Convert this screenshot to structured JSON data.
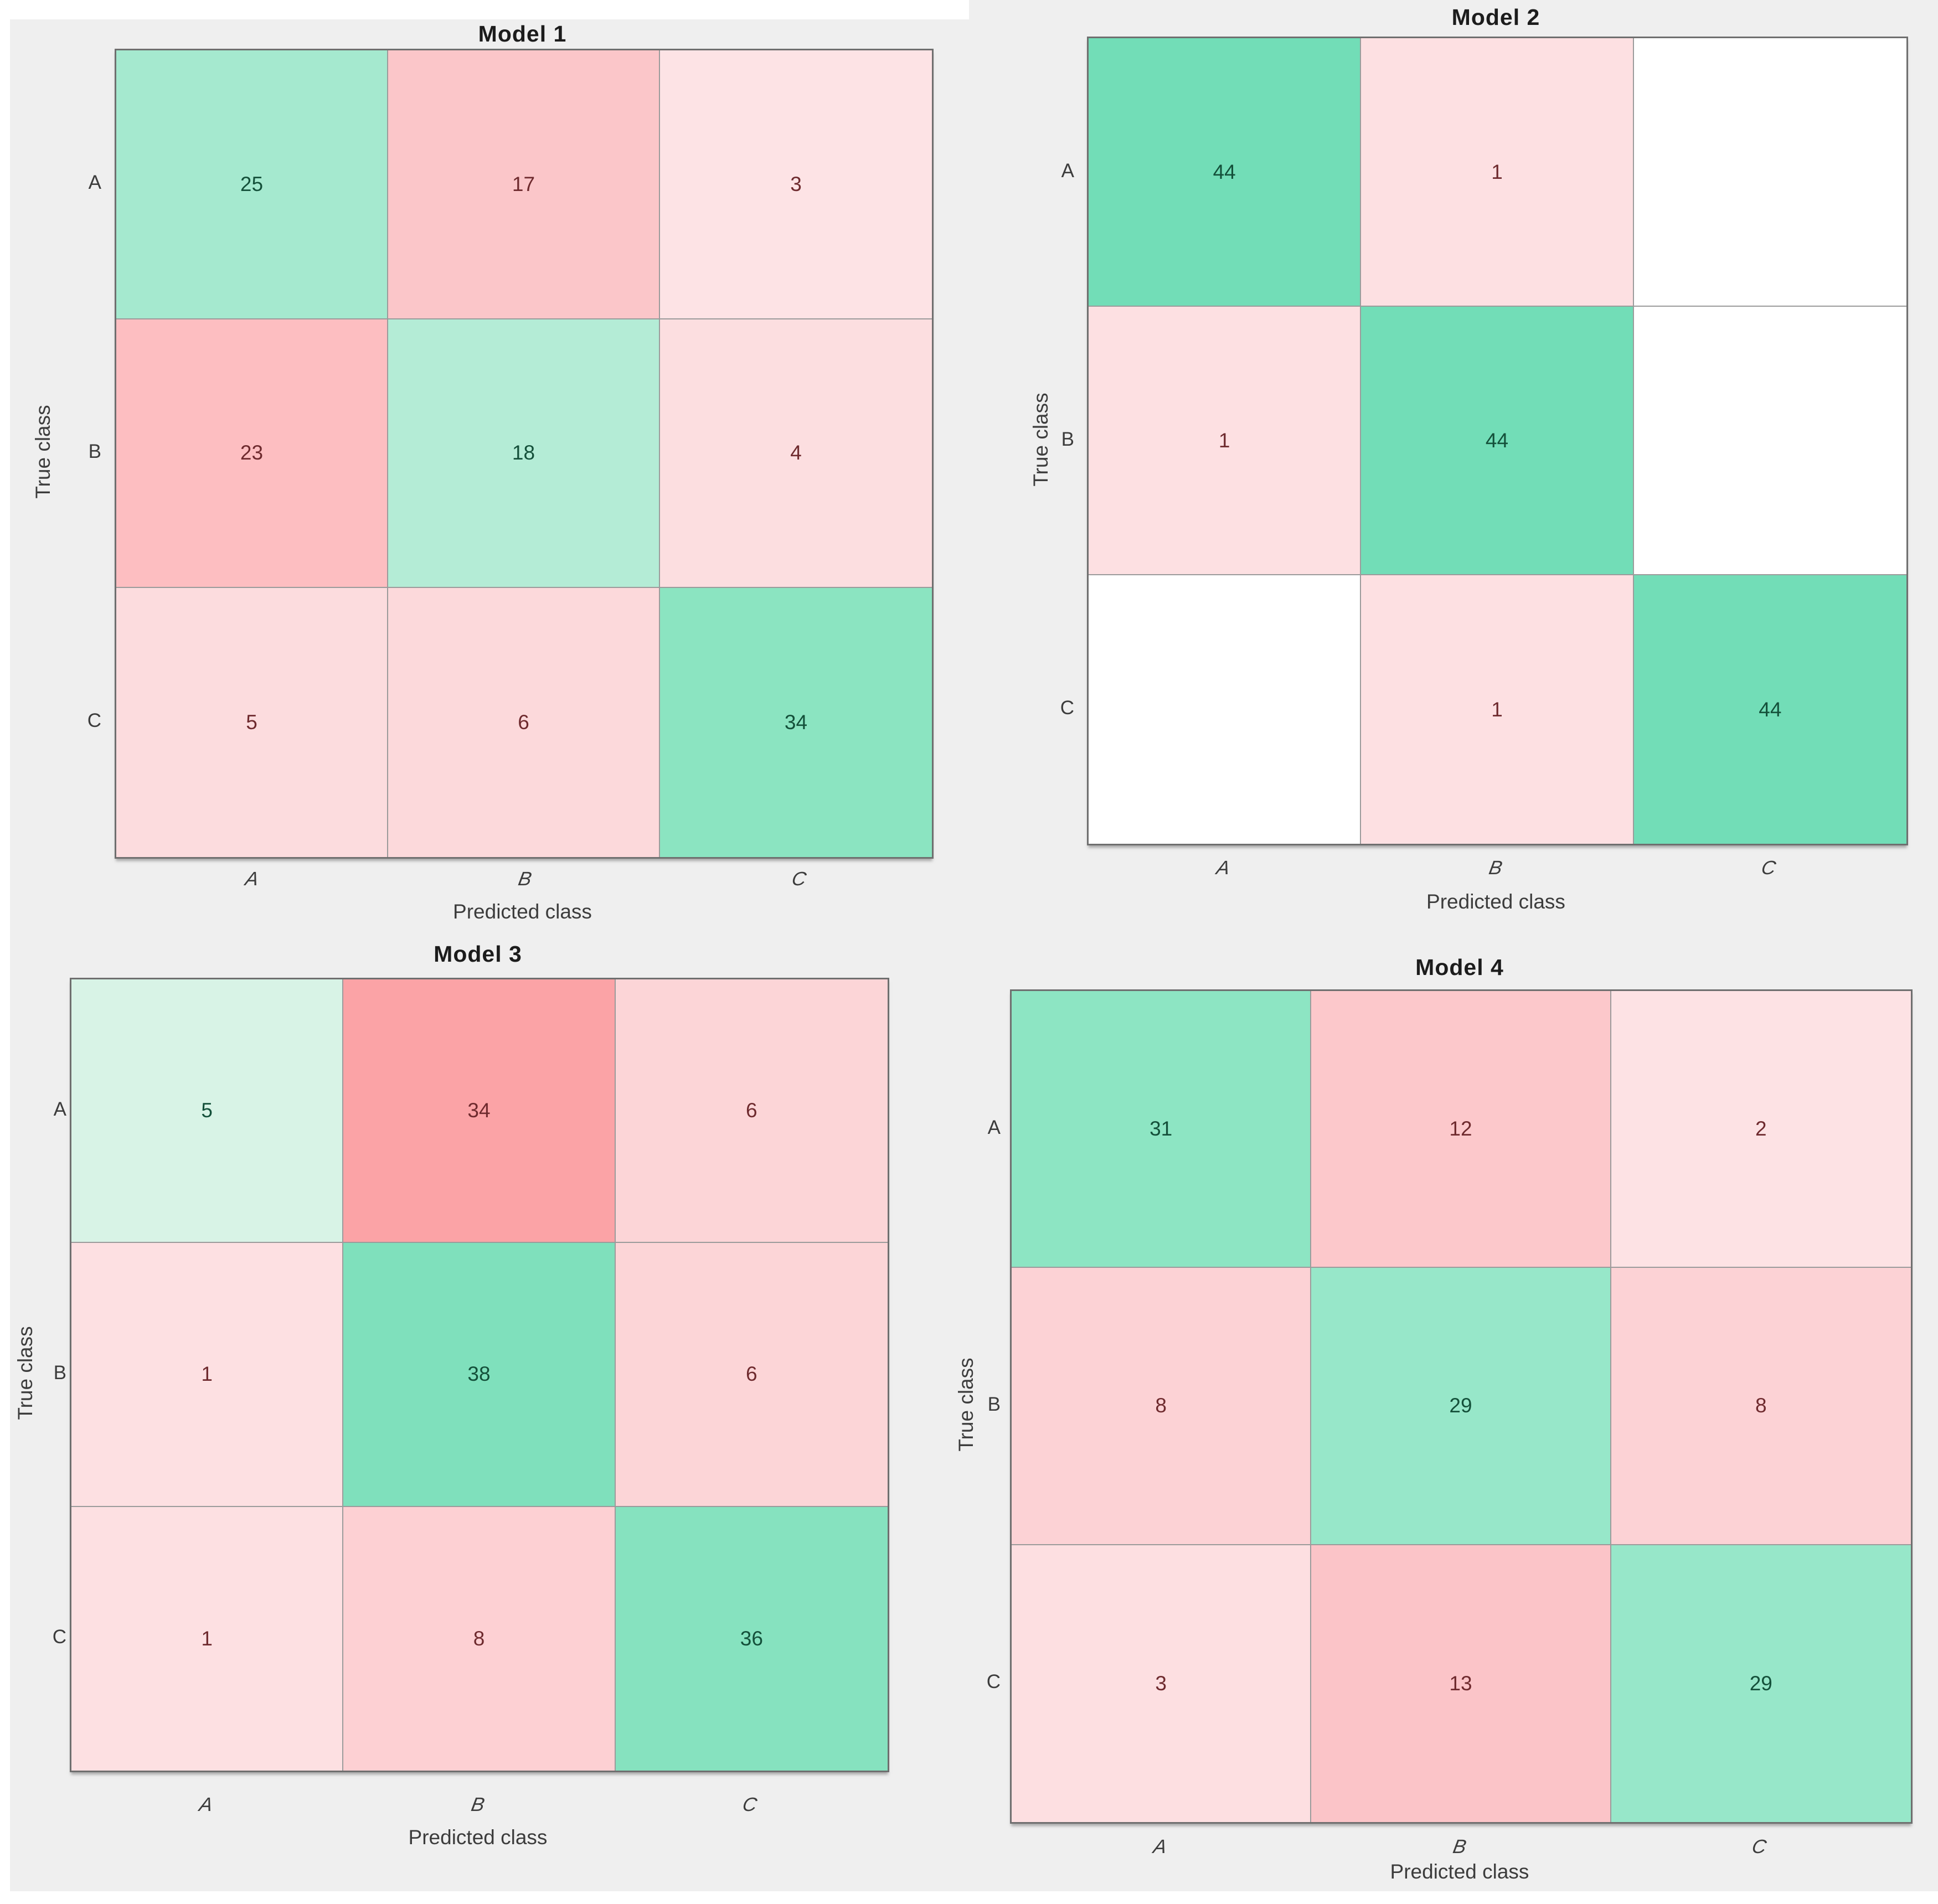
{
  "figure": {
    "background_color": "#efefef",
    "page_color": "#ffffff",
    "grid_line_color": "#9b9b9b",
    "matrix_border_color": "#6f6f6f",
    "title_color": "#1c1c1c",
    "axis_label_color": "#3c3c3c",
    "diagonal_strong_color": "#72ddb7",
    "off_diagonal_strong_color": "#fba3a6",
    "green_text_color": "#14503a",
    "red_text_color": "#6e2a2e"
  },
  "chart_data": [
    {
      "type": "heatmap",
      "title": "Model 1",
      "xlabel": "Predicted class",
      "ylabel": "True class",
      "x_categories": [
        "A",
        "B",
        "C"
      ],
      "y_categories": [
        "A",
        "B",
        "C"
      ],
      "matrix": [
        [
          25,
          17,
          3
        ],
        [
          23,
          18,
          4
        ],
        [
          5,
          6,
          34
        ]
      ],
      "cell_colors": [
        [
          "#a5e9cf",
          "#fbc6c9",
          "#fde3e5"
        ],
        [
          "#fdbec1",
          "#b4ecd6",
          "#fcdee0"
        ],
        [
          "#fcdcde",
          "#fcd9db",
          "#8be4c1"
        ]
      ],
      "value_colors": [
        [
          "#14503a",
          "#6e2a2e",
          "#6e2a2e"
        ],
        [
          "#6e2a2e",
          "#14503a",
          "#6e2a2e"
        ],
        [
          "#6e2a2e",
          "#6e2a2e",
          "#14503a"
        ]
      ]
    },
    {
      "type": "heatmap",
      "title": "Model 2",
      "xlabel": "Predicted class",
      "ylabel": "True class",
      "x_categories": [
        "A",
        "B",
        "C"
      ],
      "y_categories": [
        "A",
        "B",
        "C"
      ],
      "matrix": [
        [
          44,
          1,
          null
        ],
        [
          1,
          44,
          null
        ],
        [
          null,
          1,
          44
        ]
      ],
      "cell_colors": [
        [
          "#72ddb7",
          "#fde0e2",
          "#ffffff"
        ],
        [
          "#fde0e2",
          "#72ddb7",
          "#ffffff"
        ],
        [
          "#ffffff",
          "#fde0e2",
          "#72ddb7"
        ]
      ],
      "value_colors": [
        [
          "#14503a",
          "#6e2a2e",
          null
        ],
        [
          "#6e2a2e",
          "#14503a",
          null
        ],
        [
          null,
          "#6e2a2e",
          "#14503a"
        ]
      ]
    },
    {
      "type": "heatmap",
      "title": "Model 3",
      "xlabel": "Predicted class",
      "ylabel": "True class",
      "x_categories": [
        "A",
        "B",
        "C"
      ],
      "y_categories": [
        "A",
        "B",
        "C"
      ],
      "matrix": [
        [
          5,
          34,
          6
        ],
        [
          1,
          38,
          6
        ],
        [
          1,
          8,
          36
        ]
      ],
      "cell_colors": [
        [
          "#d8f3e6",
          "#fba3a6",
          "#fcd5d7"
        ],
        [
          "#fde0e2",
          "#7fe0bc",
          "#fcd5d7"
        ],
        [
          "#fde0e2",
          "#fdd0d3",
          "#86e2bf"
        ]
      ],
      "value_colors": [
        [
          "#14503a",
          "#6e2a2e",
          "#6e2a2e"
        ],
        [
          "#6e2a2e",
          "#14503a",
          "#6e2a2e"
        ],
        [
          "#6e2a2e",
          "#6e2a2e",
          "#14503a"
        ]
      ]
    },
    {
      "type": "heatmap",
      "title": "Model 4",
      "xlabel": "Predicted class",
      "ylabel": "True class",
      "x_categories": [
        "A",
        "B",
        "C"
      ],
      "y_categories": [
        "A",
        "B",
        "C"
      ],
      "matrix": [
        [
          31,
          12,
          2
        ],
        [
          8,
          29,
          8
        ],
        [
          3,
          13,
          29
        ]
      ],
      "cell_colors": [
        [
          "#8de5c3",
          "#fcc8cb",
          "#fde2e4"
        ],
        [
          "#fcd2d5",
          "#97e7c9",
          "#fcd2d5"
        ],
        [
          "#fddfe1",
          "#fbc4c8",
          "#97e7c9"
        ]
      ],
      "value_colors": [
        [
          "#14503a",
          "#6e2a2e",
          "#6e2a2e"
        ],
        [
          "#6e2a2e",
          "#14503a",
          "#6e2a2e"
        ],
        [
          "#6e2a2e",
          "#6e2a2e",
          "#14503a"
        ]
      ]
    }
  ]
}
